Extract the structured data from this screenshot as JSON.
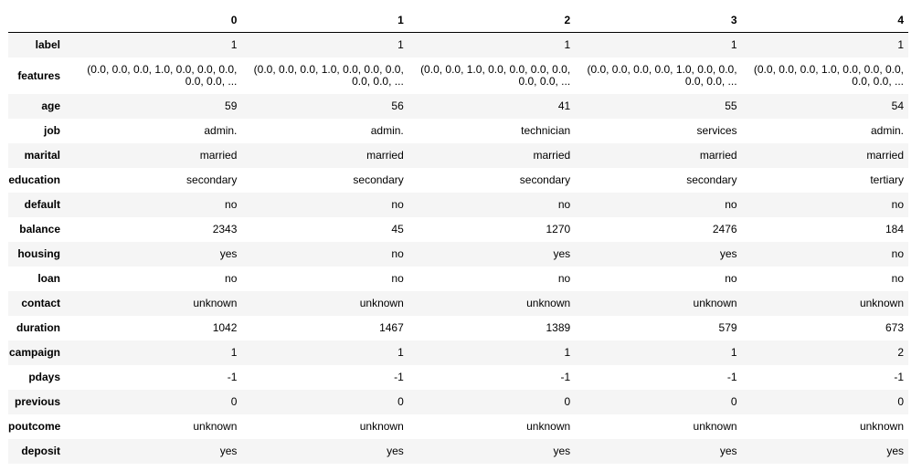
{
  "columns": [
    "0",
    "1",
    "2",
    "3",
    "4"
  ],
  "rows": [
    {
      "label": "label",
      "values": [
        "1",
        "1",
        "1",
        "1",
        "1"
      ]
    },
    {
      "label": "features",
      "values": [
        "(0.0, 0.0, 0.0, 1.0, 0.0, 0.0, 0.0, 0.0, 0.0, ...",
        "(0.0, 0.0, 0.0, 1.0, 0.0, 0.0, 0.0, 0.0, 0.0, ...",
        "(0.0, 0.0, 1.0, 0.0, 0.0, 0.0, 0.0, 0.0, 0.0, ...",
        "(0.0, 0.0, 0.0, 0.0, 1.0, 0.0, 0.0, 0.0, 0.0, ...",
        "(0.0, 0.0, 0.0, 1.0, 0.0, 0.0, 0.0, 0.0, 0.0, ..."
      ]
    },
    {
      "label": "age",
      "values": [
        "59",
        "56",
        "41",
        "55",
        "54"
      ]
    },
    {
      "label": "job",
      "values": [
        "admin.",
        "admin.",
        "technician",
        "services",
        "admin."
      ]
    },
    {
      "label": "marital",
      "values": [
        "married",
        "married",
        "married",
        "married",
        "married"
      ]
    },
    {
      "label": "education",
      "values": [
        "secondary",
        "secondary",
        "secondary",
        "secondary",
        "tertiary"
      ]
    },
    {
      "label": "default",
      "values": [
        "no",
        "no",
        "no",
        "no",
        "no"
      ]
    },
    {
      "label": "balance",
      "values": [
        "2343",
        "45",
        "1270",
        "2476",
        "184"
      ]
    },
    {
      "label": "housing",
      "values": [
        "yes",
        "no",
        "yes",
        "yes",
        "no"
      ]
    },
    {
      "label": "loan",
      "values": [
        "no",
        "no",
        "no",
        "no",
        "no"
      ]
    },
    {
      "label": "contact",
      "values": [
        "unknown",
        "unknown",
        "unknown",
        "unknown",
        "unknown"
      ]
    },
    {
      "label": "duration",
      "values": [
        "1042",
        "1467",
        "1389",
        "579",
        "673"
      ]
    },
    {
      "label": "campaign",
      "values": [
        "1",
        "1",
        "1",
        "1",
        "2"
      ]
    },
    {
      "label": "pdays",
      "values": [
        "-1",
        "-1",
        "-1",
        "-1",
        "-1"
      ]
    },
    {
      "label": "previous",
      "values": [
        "0",
        "0",
        "0",
        "0",
        "0"
      ]
    },
    {
      "label": "poutcome",
      "values": [
        "unknown",
        "unknown",
        "unknown",
        "unknown",
        "unknown"
      ]
    },
    {
      "label": "deposit",
      "values": [
        "yes",
        "yes",
        "yes",
        "yes",
        "yes"
      ]
    }
  ],
  "colors": {
    "stripe": "#f5f5f5",
    "background": "#ffffff",
    "header_rule": "#000000"
  }
}
